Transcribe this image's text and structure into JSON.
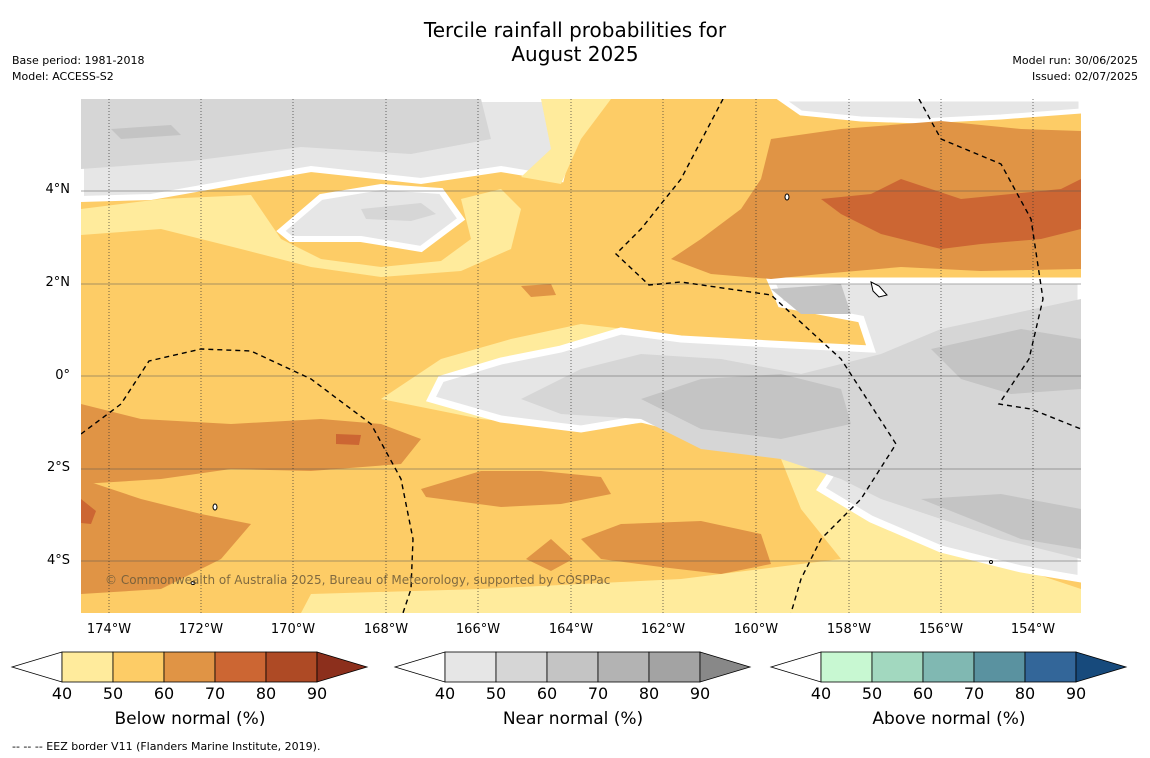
{
  "title_line1": "Tercile rainfall probabilities for",
  "title_line2": "August 2025",
  "meta_left": [
    "Base period: 1981-2018",
    "Model: ACCESS-S2"
  ],
  "meta_right": [
    "Model run: 30/06/2025",
    "Issued: 02/07/2025"
  ],
  "map": {
    "lat_ticks": [
      "4°N",
      "2°N",
      "0°",
      "2°S",
      "4°S"
    ],
    "lon_ticks": [
      "174°W",
      "172°W",
      "170°W",
      "168°W",
      "166°W",
      "164°W",
      "162°W",
      "160°W",
      "158°W",
      "156°W",
      "154°W"
    ],
    "copyright": "© Commonwealth of Australia 2025, Bureau of Meteorology, supported by COSPPac"
  },
  "colorbars": [
    {
      "label": "Below normal (%)",
      "ticks": [
        "40",
        "50",
        "60",
        "70",
        "80",
        "90"
      ],
      "colors": [
        "#ffffff",
        "#ffeb9c",
        "#fdcc66",
        "#e09445",
        "#cc6633",
        "#ae4a25",
        "#8c2f1c"
      ]
    },
    {
      "label": "Near normal (%)",
      "ticks": [
        "40",
        "50",
        "60",
        "70",
        "80",
        "90"
      ],
      "colors": [
        "#ffffff",
        "#e6e6e6",
        "#d6d6d6",
        "#c4c4c4",
        "#b3b3b3",
        "#a3a3a3",
        "#888888"
      ]
    },
    {
      "label": "Above normal (%)",
      "ticks": [
        "40",
        "50",
        "60",
        "70",
        "80",
        "90"
      ],
      "colors": [
        "#ffffff",
        "#c8f8d2",
        "#a2d8bf",
        "#80b8b2",
        "#5a92a0",
        "#336699",
        "#174a7c"
      ]
    }
  ],
  "footnote": "--  --  -- EEZ border V11 (Flanders Marine Institute, 2019)."
}
